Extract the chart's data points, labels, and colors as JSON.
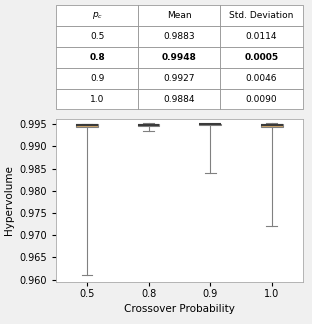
{
  "table": {
    "pc": [
      0.5,
      0.8,
      0.9,
      1.0
    ],
    "mean": [
      0.9883,
      0.9948,
      0.9927,
      0.9884
    ],
    "std": [
      0.0114,
      0.0005,
      0.0046,
      0.009
    ],
    "bold_row": 1
  },
  "boxplot": {
    "labels": [
      "0.5",
      "0.8",
      "0.9",
      "1.0"
    ],
    "boxes": [
      {
        "q1": 0.9944,
        "median": 0.9948,
        "q3": 0.995,
        "whislo": 0.961,
        "whishi": 0.995,
        "fliers": []
      },
      {
        "q1": 0.9946,
        "median": 0.9949,
        "q3": 0.9951,
        "whislo": 0.9935,
        "whishi": 0.9953,
        "fliers": []
      },
      {
        "q1": 0.9948,
        "median": 0.995,
        "q3": 0.9951,
        "whislo": 0.984,
        "whishi": 0.9951,
        "fliers": []
      },
      {
        "q1": 0.9943,
        "median": 0.9948,
        "q3": 0.995,
        "whislo": 0.972,
        "whishi": 0.9952,
        "fliers": []
      }
    ],
    "box_facecolor": "#d4a96a",
    "box_edgecolor": "#808080",
    "median_color": "#3a3a3a",
    "whisker_color": "#808080",
    "cap_color": "#808080",
    "ylim": [
      0.9595,
      0.9962
    ],
    "yticks": [
      0.96,
      0.965,
      0.97,
      0.975,
      0.98,
      0.985,
      0.99,
      0.995
    ],
    "xlabel": "Crossover Probability",
    "ylabel": "Hypervolume"
  },
  "fig_bg": "#f0f0f0",
  "plot_bg": "#ffffff"
}
